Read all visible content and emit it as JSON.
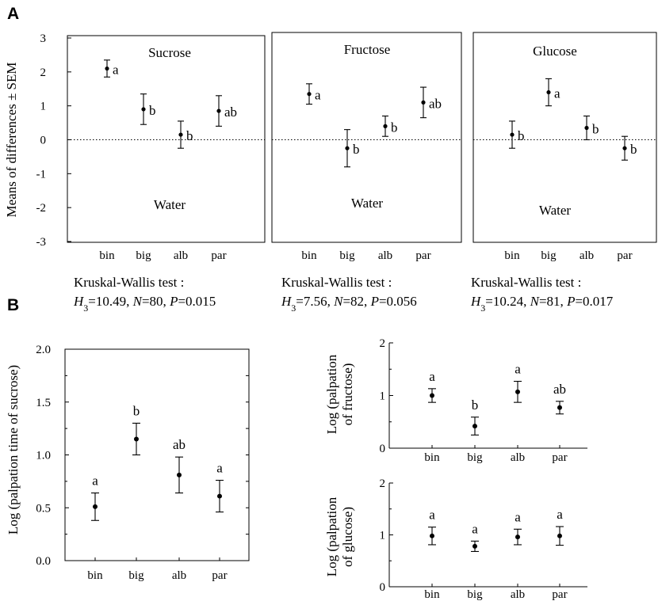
{
  "panel_labels": {
    "a": "A",
    "b": "B"
  },
  "colors": {
    "ink": "#000000",
    "background": "#ffffff"
  },
  "chart_data": [
    {
      "id": "A1",
      "type": "scatter",
      "error_bars": "SEM",
      "categories": [
        "bin",
        "big",
        "alb",
        "par"
      ],
      "values": [
        2.1,
        0.9,
        0.15,
        0.85
      ],
      "errors": [
        0.25,
        0.45,
        0.4,
        0.45
      ],
      "sig_labels": [
        "a",
        "b",
        "b",
        "ab"
      ],
      "title": "Sucrose",
      "bottom_label": "Water",
      "ylabel": "Means of differences ± SEM",
      "yticks": [
        "3",
        "2",
        "1",
        "0",
        "-1",
        "-2",
        "-3"
      ],
      "ylim": [
        -3,
        3
      ],
      "zero_line": true,
      "test": {
        "name": "Kruskal-Wallis test :",
        "H_label": "H",
        "H_sub": "3",
        "H_value": "=10.49, ",
        "N_label": "N",
        "N_value": "=80, ",
        "P_label": "P",
        "P_value": "=0.015"
      }
    },
    {
      "id": "A2",
      "type": "scatter",
      "error_bars": "SEM",
      "categories": [
        "bin",
        "big",
        "alb",
        "par"
      ],
      "values": [
        1.35,
        -0.25,
        0.4,
        1.1
      ],
      "errors": [
        0.3,
        0.55,
        0.3,
        0.45
      ],
      "sig_labels": [
        "a",
        "b",
        "b",
        "ab"
      ],
      "title": "Fructose",
      "bottom_label": "Water",
      "ylim": [
        -3,
        3
      ],
      "zero_line": true,
      "test": {
        "name": "Kruskal-Wallis test :",
        "H_label": "H",
        "H_sub": "3",
        "H_value": "=7.56, ",
        "N_label": "N",
        "N_value": "=82, ",
        "P_label": "P",
        "P_value": "=0.056"
      }
    },
    {
      "id": "A3",
      "type": "scatter",
      "error_bars": "SEM",
      "categories": [
        "bin",
        "big",
        "alb",
        "par"
      ],
      "values": [
        0.15,
        1.4,
        0.35,
        -0.25
      ],
      "errors": [
        0.4,
        0.4,
        0.35,
        0.35
      ],
      "sig_labels": [
        "b",
        "a",
        "b",
        "b"
      ],
      "title": "Glucose",
      "bottom_label": "Water",
      "ylim": [
        -3,
        3
      ],
      "zero_line": true,
      "test": {
        "name": "Kruskal-Wallis test :",
        "H_label": "H",
        "H_sub": "3",
        "H_value": "=10.24, ",
        "N_label": "N",
        "N_value": "=81, ",
        "P_label": "P",
        "P_value": "=0.017"
      }
    },
    {
      "id": "B1",
      "type": "scatter",
      "categories": [
        "bin",
        "big",
        "alb",
        "par"
      ],
      "values": [
        0.51,
        1.15,
        0.81,
        0.61
      ],
      "errors": [
        0.13,
        0.15,
        0.17,
        0.15
      ],
      "sig_labels": [
        "a",
        "b",
        "ab",
        "a"
      ],
      "ylabel": "Log (palpation time of sucrose)",
      "yticks": [
        "2.0",
        "1.5",
        "1.0",
        "0.5",
        "0.0"
      ],
      "ylim": [
        0,
        2
      ]
    },
    {
      "id": "B2",
      "type": "scatter",
      "categories": [
        "bin",
        "big",
        "alb",
        "par"
      ],
      "values": [
        1.0,
        0.42,
        1.07,
        0.77
      ],
      "errors": [
        0.13,
        0.17,
        0.2,
        0.12
      ],
      "sig_labels": [
        "a",
        "b",
        "a",
        "ab"
      ],
      "ylabel_lines": [
        "Log (palpation",
        "of fructose)"
      ],
      "yticks": [
        "2",
        "1",
        "0"
      ],
      "ylim": [
        0,
        2
      ]
    },
    {
      "id": "B3",
      "type": "scatter",
      "categories": [
        "bin",
        "big",
        "alb",
        "par"
      ],
      "values": [
        0.98,
        0.78,
        0.96,
        0.98
      ],
      "errors": [
        0.17,
        0.1,
        0.15,
        0.18
      ],
      "sig_labels": [
        "a",
        "a",
        "a",
        "a"
      ],
      "ylabel_lines": [
        "Log (palpation",
        "of glucose)"
      ],
      "yticks": [
        "2",
        "1",
        "0"
      ],
      "ylim": [
        0,
        2
      ]
    }
  ]
}
